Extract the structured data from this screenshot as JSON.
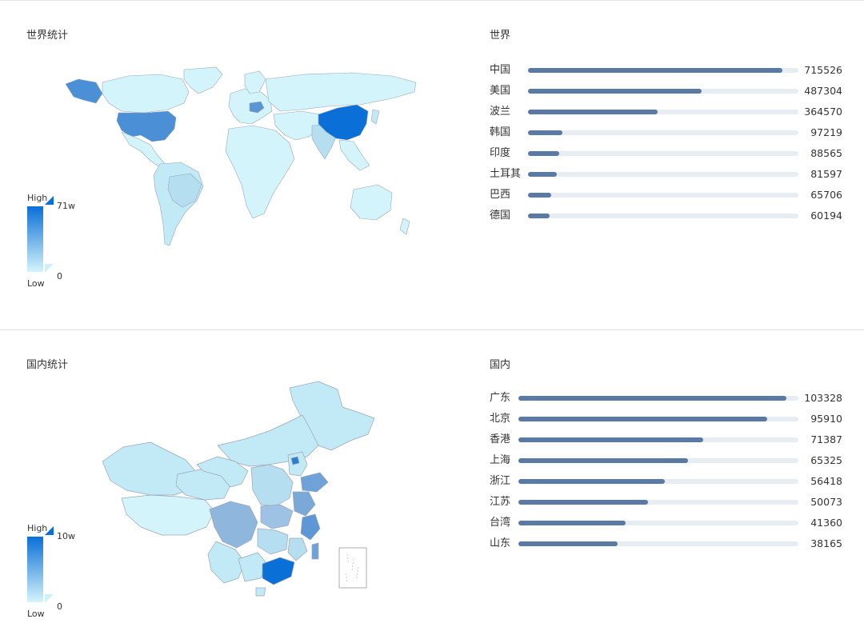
{
  "world": {
    "map_title": "世界统计",
    "bar_title": "世界",
    "legend": {
      "high": "High",
      "low": "Low",
      "max_label": "71w",
      "min_label": "0"
    }
  },
  "china": {
    "map_title": "国内统计",
    "bar_title": "国内",
    "legend": {
      "high": "High",
      "low": "Low",
      "max_label": "10w",
      "min_label": "0"
    }
  },
  "colors": {
    "bar": "#5a79a5",
    "track": "#e8edf4",
    "high": "#0a6fd6",
    "low": "#d4f4fb"
  },
  "chart_data": [
    {
      "type": "bar",
      "orientation": "horizontal",
      "title": "世界",
      "categories": [
        "中国",
        "美国",
        "波兰",
        "韩国",
        "印度",
        "土耳其",
        "巴西",
        "德国"
      ],
      "values": [
        715526,
        487304,
        364570,
        97219,
        88565,
        81597,
        65706,
        60194
      ],
      "xlim": [
        0,
        760000
      ]
    },
    {
      "type": "bar",
      "orientation": "horizontal",
      "title": "国内",
      "categories": [
        "广东",
        "北京",
        "香港",
        "上海",
        "浙江",
        "江苏",
        "台湾",
        "山东"
      ],
      "values": [
        103328,
        95910,
        71387,
        65325,
        56418,
        50073,
        41360,
        38165
      ],
      "xlim": [
        0,
        108000
      ]
    },
    {
      "type": "heatmap",
      "title": "世界统计",
      "legend_range": [
        0,
        710000
      ],
      "regions": [
        {
          "name": "中国",
          "value": 715526
        },
        {
          "name": "美国",
          "value": 487304
        },
        {
          "name": "波兰",
          "value": 364570
        }
      ]
    },
    {
      "type": "heatmap",
      "title": "国内统计",
      "legend_range": [
        0,
        100000
      ],
      "regions": [
        {
          "name": "广东",
          "value": 103328
        },
        {
          "name": "北京",
          "value": 95910
        }
      ]
    }
  ]
}
